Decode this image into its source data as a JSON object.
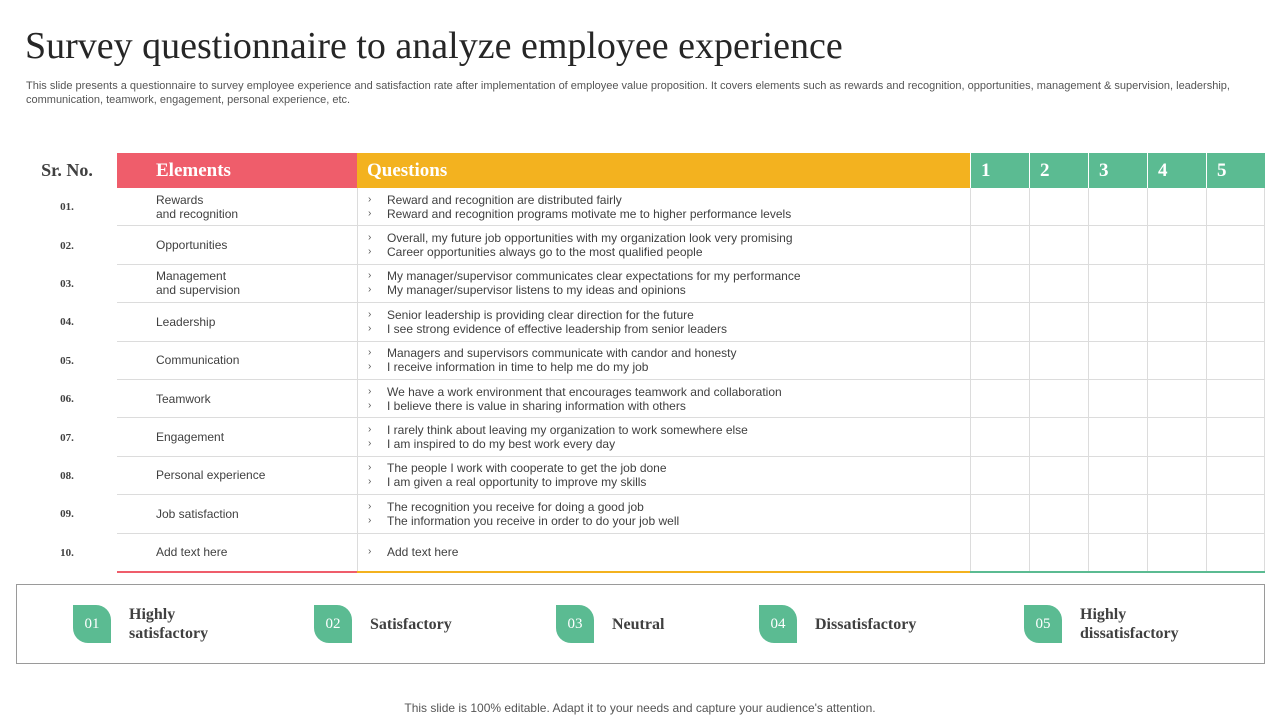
{
  "title": "Survey questionnaire to analyze employee experience",
  "subtitle": "This slide presents a questionnaire to survey employee experience and satisfaction rate after implementation of employee value proposition. It covers elements such as rewards and recognition, opportunities, management & supervision, leadership, communication, teamwork, engagement, personal experience, etc.",
  "table": {
    "header": {
      "srno": "Sr. No.",
      "elements": "Elements",
      "questions": "Questions",
      "ratings": [
        "1",
        "2",
        "3",
        "4",
        "5"
      ]
    },
    "rows": [
      {
        "num": "01.",
        "element": "Rewards\nand recognition",
        "questions": [
          "Reward and recognition are distributed fairly",
          "Reward and recognition programs motivate me to higher performance levels"
        ]
      },
      {
        "num": "02.",
        "element": "Opportunities",
        "questions": [
          "Overall, my future job opportunities with my organization look very promising",
          "Career opportunities always go to the most qualified people"
        ]
      },
      {
        "num": "03.",
        "element": "Management\nand supervision",
        "questions": [
          "My manager/supervisor communicates clear expectations for my performance",
          "My manager/supervisor listens to my ideas and opinions"
        ]
      },
      {
        "num": "04.",
        "element": "Leadership",
        "questions": [
          "Senior leadership is providing clear direction for the future",
          "I see strong evidence of effective leadership from senior leaders"
        ]
      },
      {
        "num": "05.",
        "element": "Communication",
        "questions": [
          "Managers and supervisors communicate with candor and honesty",
          "I receive information in time to help me do my job"
        ]
      },
      {
        "num": "06.",
        "element": "Teamwork",
        "questions": [
          "We have a work environment that encourages teamwork and collaboration",
          "I believe there is value in sharing information with others"
        ]
      },
      {
        "num": "07.",
        "element": "Engagement",
        "questions": [
          "I rarely think about leaving my organization to work somewhere else",
          "I am inspired to do my best work every day"
        ]
      },
      {
        "num": "08.",
        "element": "Personal experience",
        "questions": [
          "The people I work with cooperate to get the job done",
          "I am given a real opportunity to improve my skills"
        ]
      },
      {
        "num": "09.",
        "element": "Job satisfaction",
        "questions": [
          "The recognition you receive for doing a good job",
          "The information you receive in order to do your job well"
        ]
      },
      {
        "num": "10.",
        "element": "Add text here",
        "questions": [
          "Add text here"
        ]
      }
    ]
  },
  "legend": [
    {
      "num": "01",
      "label": "Highly\nsatisfactory"
    },
    {
      "num": "02",
      "label": "Satisfactory"
    },
    {
      "num": "03",
      "label": "Neutral"
    },
    {
      "num": "04",
      "label": "Dissatisfactory"
    },
    {
      "num": "05",
      "label": "Highly\ndissatisfactory"
    }
  ],
  "footer": "This slide is 100% editable. Adapt it to your needs and capture your audience's attention.",
  "colors": {
    "elements_header": "#ef5d6b",
    "questions_header": "#f3b21f",
    "rating_header": "#5bbb92",
    "legend_badge": "#5bbb92"
  },
  "icons": {
    "bullet": "chevron-right-icon"
  }
}
